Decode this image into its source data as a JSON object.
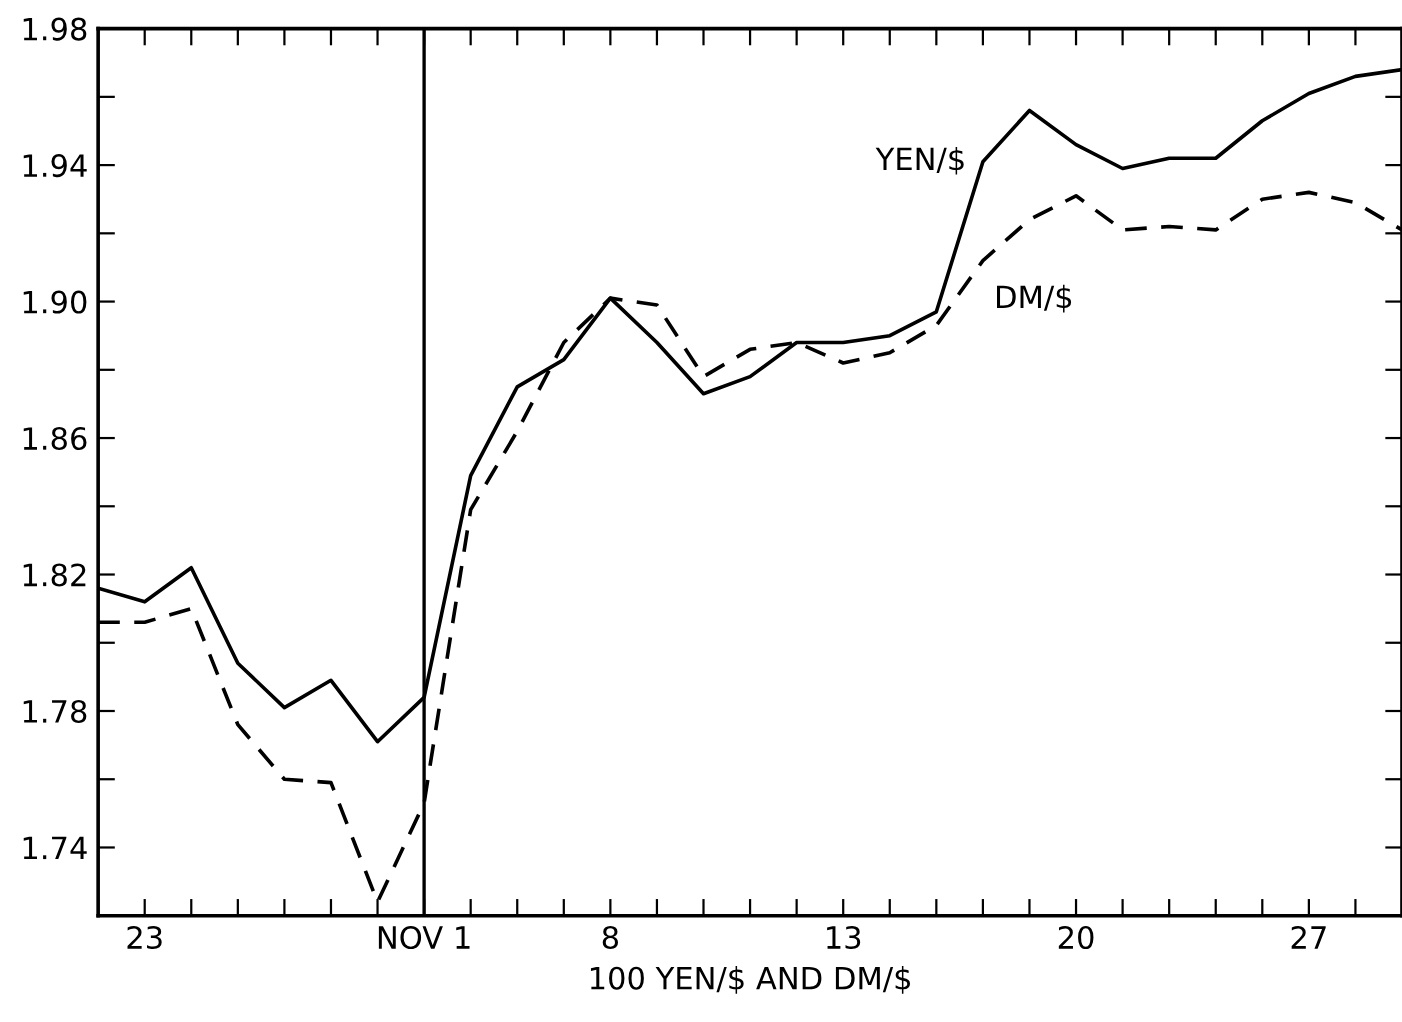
{
  "chart_data": {
    "type": "line",
    "xlabel": "100 YEN/$ AND DM/$",
    "categories": [
      null,
      "23",
      null,
      null,
      null,
      null,
      null,
      "NOV 1",
      null,
      null,
      null,
      "8",
      null,
      null,
      null,
      null,
      "13",
      null,
      null,
      null,
      null,
      "20",
      null,
      null,
      null,
      null,
      "27",
      null,
      null
    ],
    "series": [
      {
        "name": "YEN/$",
        "color": "#000000",
        "line_style": "solid",
        "values": [
          1.816,
          1.812,
          1.822,
          1.794,
          1.781,
          1.789,
          1.771,
          1.784,
          1.849,
          1.875,
          1.883,
          1.901,
          1.888,
          1.873,
          1.878,
          1.888,
          1.888,
          1.89,
          1.897,
          1.941,
          1.956,
          1.946,
          1.939,
          1.942,
          1.942,
          1.953,
          1.961,
          1.966,
          1.968
        ]
      },
      {
        "name": "DM/$",
        "color": "#000000",
        "line_style": "dashed",
        "values": [
          1.806,
          1.806,
          1.81,
          1.776,
          1.76,
          1.759,
          1.724,
          1.753,
          1.839,
          1.862,
          1.888,
          1.901,
          1.899,
          1.878,
          1.886,
          1.888,
          1.882,
          1.885,
          1.893,
          1.912,
          1.924,
          1.931,
          1.921,
          1.922,
          1.921,
          1.93,
          1.932,
          1.929,
          1.921
        ]
      }
    ],
    "ylim": [
      1.72,
      1.98
    ],
    "yticks": [
      {
        "value": 1.72,
        "label": null
      },
      1.74,
      {
        "value": 1.76,
        "label": null
      },
      1.78,
      {
        "value": 1.8,
        "label": null
      },
      1.82,
      {
        "value": 1.84,
        "label": null
      },
      1.86,
      {
        "value": 1.88,
        "label": null
      },
      {
        "value": 1.9,
        "label": "1.90"
      },
      {
        "value": 1.92,
        "label": null
      },
      1.94,
      {
        "value": 1.96,
        "label": null
      },
      1.98
    ],
    "ref_lines": [
      {
        "axis": "x",
        "value": "NOV 1",
        "color": "#000000",
        "line_style": "solid"
      }
    ],
    "grid": false
  }
}
